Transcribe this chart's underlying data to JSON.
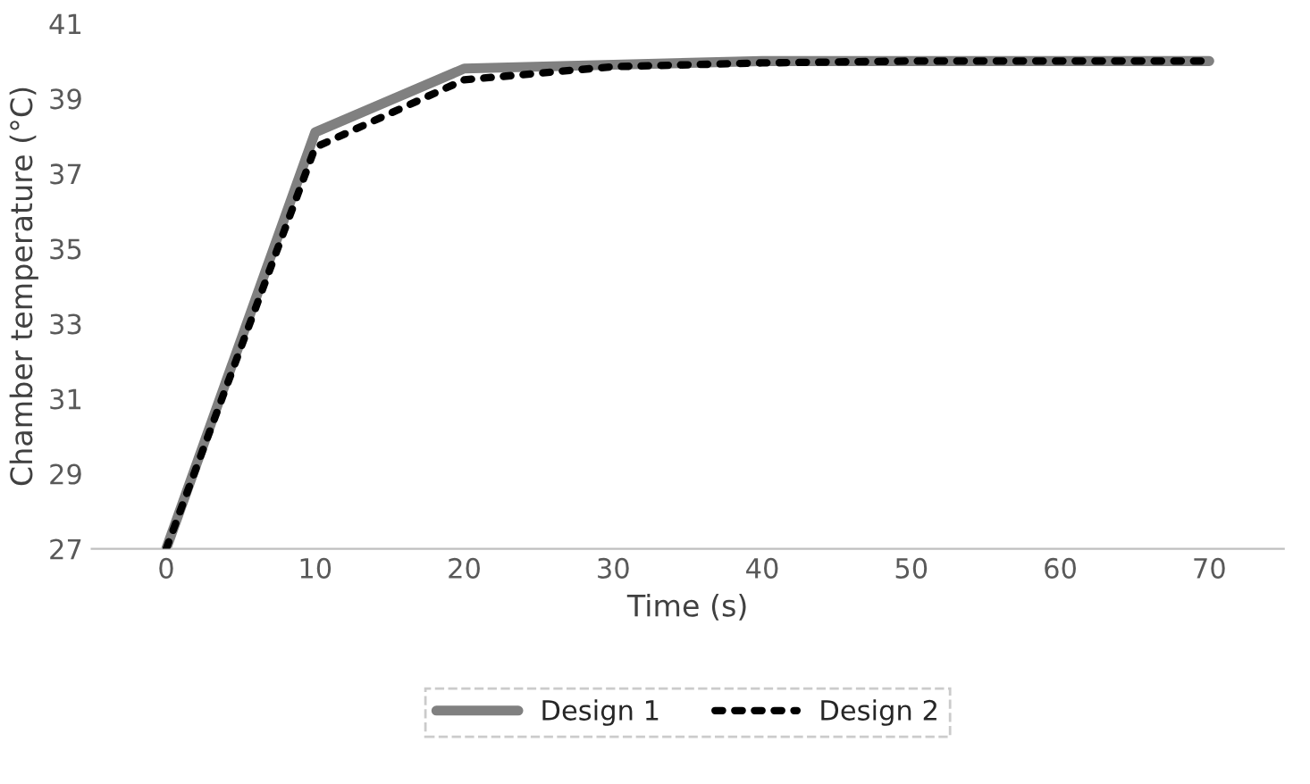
{
  "chart_data": {
    "type": "line",
    "xlabel": "Time (s)",
    "ylabel": "Chamber temperature (°C)",
    "categories": [
      "0",
      "10",
      "20",
      "30",
      "40",
      "50",
      "60",
      "70"
    ],
    "series": [
      {
        "name": "Design 1",
        "color": "#808080",
        "line_style": "solid",
        "values": [
          27,
          38.1,
          39.8,
          39.9,
          40,
          40,
          40,
          40
        ]
      },
      {
        "name": "Design 2",
        "color": "#000000",
        "line_style": "dotted",
        "values": [
          27,
          37.7,
          39.5,
          39.85,
          39.95,
          40,
          40,
          40
        ]
      }
    ],
    "ylim": [
      27,
      41
    ],
    "yticks": [
      27,
      29,
      31,
      33,
      35,
      37,
      39,
      41
    ],
    "grid": false,
    "legend": "bottom",
    "marker": "none"
  }
}
